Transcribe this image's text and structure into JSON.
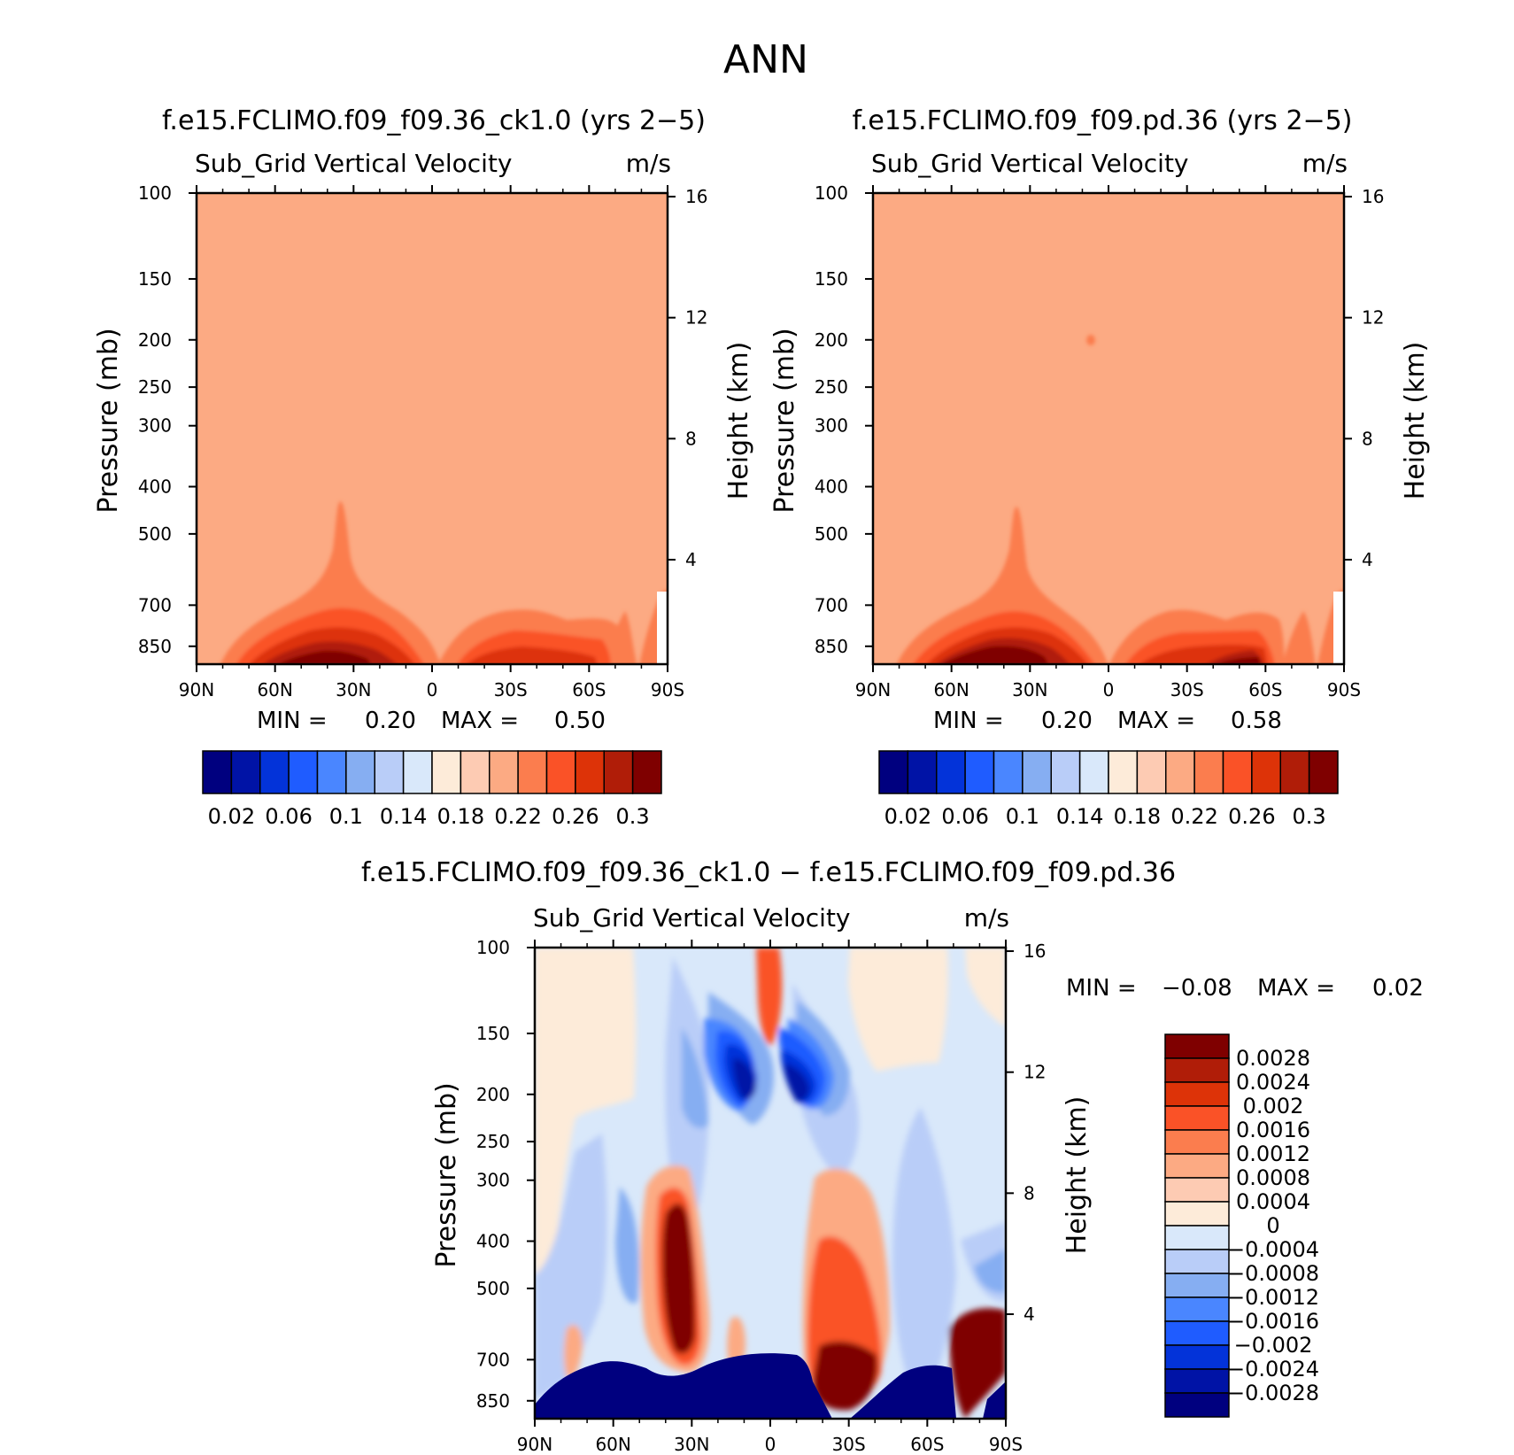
{
  "page": {
    "title": "ANN"
  },
  "colors": {
    "cb16": [
      "#00007f",
      "#0013a6",
      "#0333d9",
      "#1f5cff",
      "#4a86ff",
      "#86aef2",
      "#b9cdf8",
      "#d9e8fa",
      "#fdebd9",
      "#fdcbb3",
      "#fcaa83",
      "#fb7d4e",
      "#fa5227",
      "#dd3308",
      "#b01d08",
      "#7f0000"
    ],
    "diff": [
      "#00007f",
      "#0013a6",
      "#0333d9",
      "#1f5cff",
      "#4a86ff",
      "#86aef2",
      "#b9cdf8",
      "#d9e8fa",
      "#fdebd9",
      "#fdcbb3",
      "#fcaa83",
      "#fb7d4e",
      "#fa5227",
      "#dd3308",
      "#b01d08",
      "#7f0000"
    ]
  },
  "panels": [
    {
      "title": "f.e15.FCLIMO.f09_f09.36_ck1.0 (yrs 2−5)",
      "variable": "Sub_Grid Vertical Velocity",
      "units": "m/s",
      "ylabel": "Pressure (mb)",
      "y2label": "Height (km)",
      "min_text": "MIN =",
      "min_val": "0.20",
      "max_text": "MAX =",
      "max_val": "0.50"
    },
    {
      "title": "f.e15.FCLIMO.f09_f09.pd.36 (yrs 2−5)",
      "variable": "Sub_Grid Vertical Velocity",
      "units": "m/s",
      "ylabel": "Pressure (mb)",
      "y2label": "Height (km)",
      "min_text": "MIN =",
      "min_val": "0.20",
      "max_text": "MAX =",
      "max_val": "0.58"
    },
    {
      "title": "f.e15.FCLIMO.f09_f09.36_ck1.0 − f.e15.FCLIMO.f09_f09.pd.36",
      "variable": "Sub_Grid Vertical Velocity",
      "units": "m/s",
      "ylabel": "Pressure (mb)",
      "y2label": "Height (km)",
      "min_text": "MIN =",
      "min_val": "−0.08",
      "max_text": "MAX =",
      "max_val": "0.02"
    }
  ],
  "chart_data": [
    {
      "type": "heatmap",
      "title": "f.e15.FCLIMO.f09_f09.36_ck1.0 (yrs 2−5)",
      "subtitle": "Sub_Grid Vertical Velocity",
      "units": "m/s",
      "xlabel": "",
      "ylabel": "Pressure (mb)",
      "y2label": "Height (km)",
      "x_ticks": [
        "90N",
        "60N",
        "30N",
        "0",
        "30S",
        "60S",
        "90S"
      ],
      "y_ticks": [
        100,
        150,
        200,
        250,
        300,
        400,
        500,
        700,
        850
      ],
      "y2_ticks": [
        16,
        12,
        8,
        4
      ],
      "ylim": [
        100,
        925
      ],
      "log_scale_y": true,
      "min": 0.2,
      "max": 0.5,
      "colorbar_labels": [
        "0.02",
        "0.06",
        "0.1",
        "0.14",
        "0.18",
        "0.22",
        "0.26",
        "0.3"
      ]
    },
    {
      "type": "heatmap",
      "title": "f.e15.FCLIMO.f09_f09.pd.36 (yrs 2−5)",
      "subtitle": "Sub_Grid Vertical Velocity",
      "units": "m/s",
      "xlabel": "",
      "ylabel": "Pressure (mb)",
      "y2label": "Height (km)",
      "x_ticks": [
        "90N",
        "60N",
        "30N",
        "0",
        "30S",
        "60S",
        "90S"
      ],
      "y_ticks": [
        100,
        150,
        200,
        250,
        300,
        400,
        500,
        700,
        850
      ],
      "y2_ticks": [
        16,
        12,
        8,
        4
      ],
      "ylim": [
        100,
        925
      ],
      "log_scale_y": true,
      "min": 0.2,
      "max": 0.58,
      "colorbar_labels": [
        "0.02",
        "0.06",
        "0.1",
        "0.14",
        "0.18",
        "0.22",
        "0.26",
        "0.3"
      ]
    },
    {
      "type": "heatmap",
      "title": "f.e15.FCLIMO.f09_f09.36_ck1.0 − f.e15.FCLIMO.f09_f09.pd.36",
      "subtitle": "Sub_Grid Vertical Velocity",
      "units": "m/s",
      "xlabel": "",
      "ylabel": "Pressure (mb)",
      "y2label": "Height (km)",
      "x_ticks": [
        "90N",
        "60N",
        "30N",
        "0",
        "30S",
        "60S",
        "90S"
      ],
      "y_ticks": [
        100,
        150,
        200,
        250,
        300,
        400,
        500,
        700,
        850
      ],
      "y2_ticks": [
        16,
        12,
        8,
        4
      ],
      "ylim": [
        100,
        925
      ],
      "log_scale_y": true,
      "min": -0.08,
      "max": 0.02,
      "colorbar_labels": [
        "0.0028",
        "0.0024",
        "0.002",
        "0.0016",
        "0.0012",
        "0.0008",
        "0.0004",
        "0",
        "−0.0004",
        "−0.0008",
        "−0.0012",
        "−0.0016",
        "−0.002",
        "−0.0024",
        "−0.0028"
      ]
    }
  ]
}
